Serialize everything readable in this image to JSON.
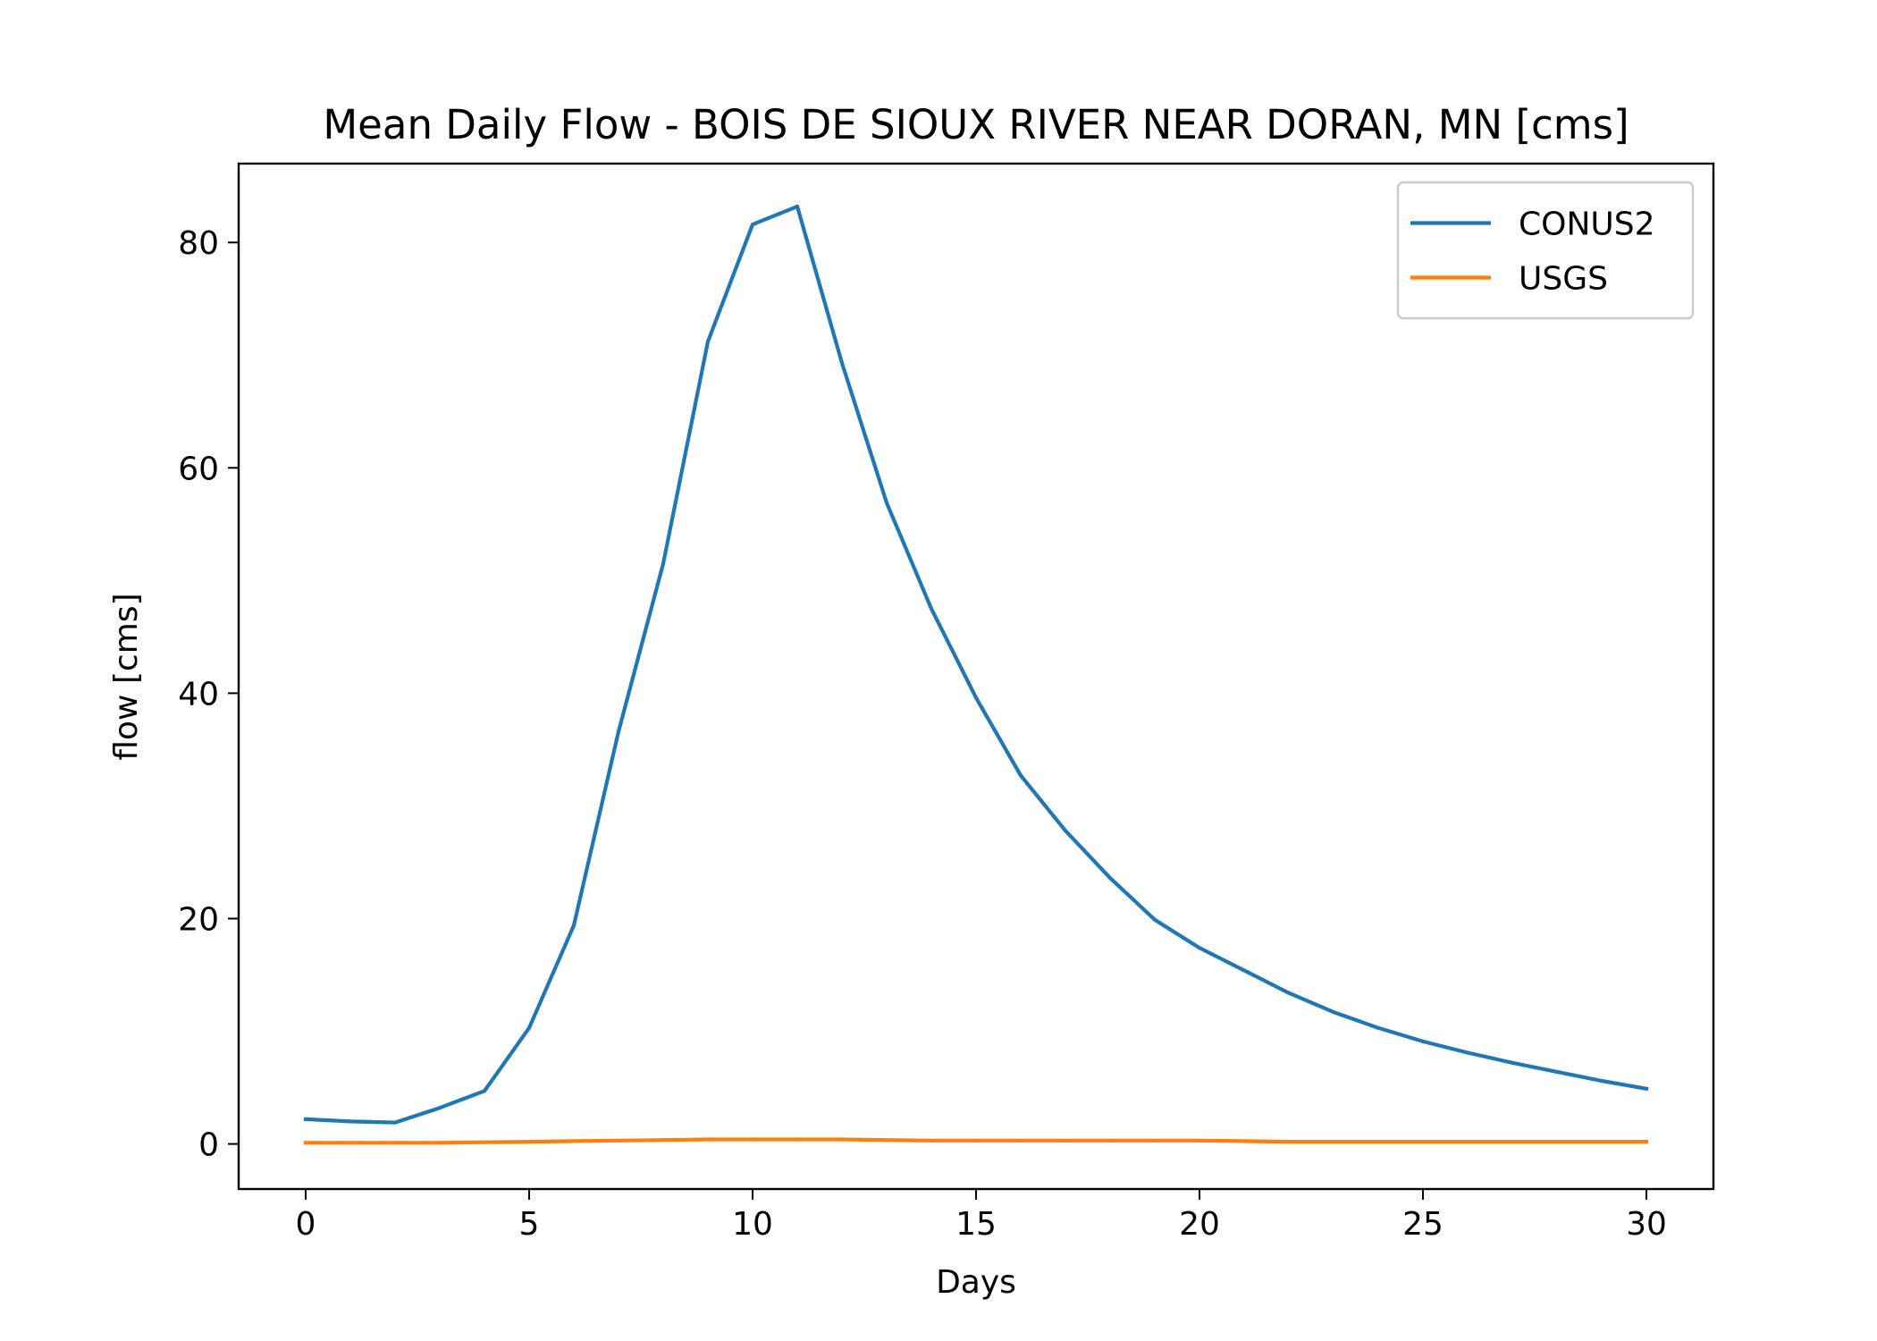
{
  "chart_data": {
    "type": "line",
    "title": "Mean Daily Flow - BOIS DE SIOUX RIVER NEAR DORAN, MN [cms]",
    "xlabel": "Days",
    "ylabel": "flow [cms]",
    "xlim": [
      -1.5,
      31.5
    ],
    "ylim": [
      -4,
      87
    ],
    "xticks": [
      0,
      5,
      10,
      15,
      20,
      25,
      30
    ],
    "yticks": [
      0,
      20,
      40,
      60,
      80
    ],
    "grid": false,
    "legend_position": "top-right",
    "x": [
      0,
      1,
      2,
      3,
      4,
      5,
      6,
      7,
      8,
      9,
      10,
      11,
      12,
      13,
      14,
      15,
      16,
      17,
      18,
      19,
      20,
      21,
      22,
      23,
      24,
      25,
      26,
      27,
      28,
      29,
      30
    ],
    "series": [
      {
        "name": "CONUS2",
        "color": "#1f77b4",
        "values": [
          2.2,
          2.0,
          1.9,
          3.2,
          4.7,
          10.3,
          19.4,
          36.6,
          51.5,
          71.2,
          81.6,
          83.2,
          69.3,
          56.9,
          47.5,
          39.6,
          32.7,
          27.8,
          23.6,
          19.9,
          17.4,
          15.4,
          13.4,
          11.7,
          10.3,
          9.1,
          8.1,
          7.2,
          6.4,
          5.6,
          4.9
        ]
      },
      {
        "name": "USGS",
        "color": "#ff7f0e",
        "values": [
          0.1,
          0.1,
          0.1,
          0.1,
          0.15,
          0.2,
          0.25,
          0.3,
          0.35,
          0.4,
          0.4,
          0.4,
          0.4,
          0.35,
          0.3,
          0.3,
          0.3,
          0.3,
          0.3,
          0.3,
          0.3,
          0.25,
          0.2,
          0.2,
          0.2,
          0.2,
          0.2,
          0.2,
          0.2,
          0.2,
          0.2
        ]
      }
    ]
  }
}
